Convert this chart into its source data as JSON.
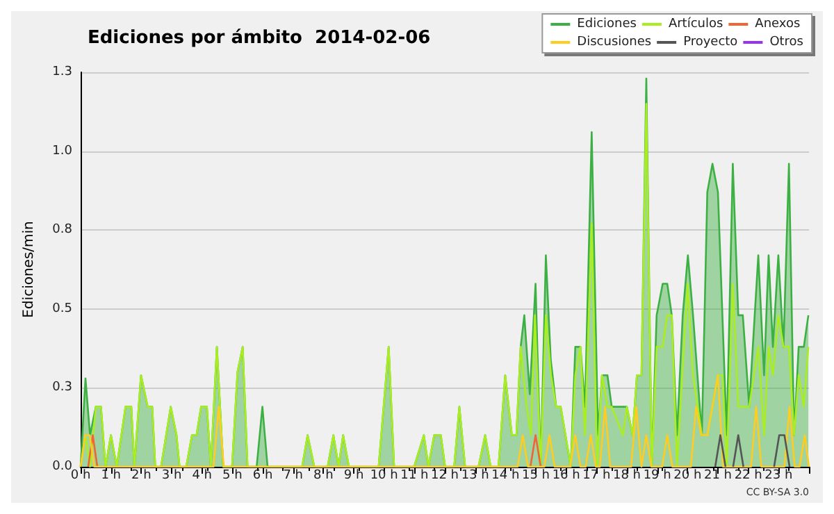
{
  "chart_data": {
    "type": "line",
    "title": "Ediciones por ámbito  2014-02-06",
    "ylabel": "Ediciones/min",
    "annotations": [
      "CC BY-SA 3.0"
    ],
    "xlim": [
      0,
      24
    ],
    "xticks": [
      {
        "value": 0,
        "label": "0 h"
      },
      {
        "value": 1,
        "label": "1 h"
      },
      {
        "value": 2,
        "label": "2 h"
      },
      {
        "value": 3,
        "label": "3 h"
      },
      {
        "value": 4,
        "label": "4 h"
      },
      {
        "value": 5,
        "label": "5 h"
      },
      {
        "value": 6,
        "label": "6 h"
      },
      {
        "value": 7,
        "label": "7 h"
      },
      {
        "value": 8,
        "label": "8 h"
      },
      {
        "value": 9,
        "label": "9 h"
      },
      {
        "value": 10,
        "label": "10 h"
      },
      {
        "value": 11,
        "label": "11 h"
      },
      {
        "value": 12,
        "label": "12 h"
      },
      {
        "value": 13,
        "label": "13 h"
      },
      {
        "value": 14,
        "label": "14 h"
      },
      {
        "value": 15,
        "label": "15 h"
      },
      {
        "value": 16,
        "label": "16 h"
      },
      {
        "value": 17,
        "label": "17 h"
      },
      {
        "value": 18,
        "label": "18 h"
      },
      {
        "value": 19,
        "label": "19 h"
      },
      {
        "value": 20,
        "label": "20 h"
      },
      {
        "value": 21,
        "label": "21 h"
      },
      {
        "value": 22,
        "label": "22 h"
      },
      {
        "value": 23,
        "label": "23 h"
      },
      {
        "value": 24,
        "label": null
      }
    ],
    "ylim": [
      0,
      1.25
    ],
    "yticks": [
      {
        "value": 0,
        "label": "0.0"
      },
      {
        "value": 0.25,
        "label": "0.3"
      },
      {
        "value": 0.5,
        "label": "0.5"
      },
      {
        "value": 0.75,
        "label": "0.8"
      },
      {
        "value": 1.0,
        "label": "1.0"
      },
      {
        "value": 1.25,
        "label": "1.3"
      }
    ],
    "grid": "y",
    "legend": "top right",
    "marker": "none",
    "line_style": "solid",
    "series": [
      {
        "name": "Ediciones",
        "type": "area",
        "color": "#3cb043",
        "x": [
          0,
          0.16,
          0.31,
          0.5,
          0.67,
          0.82,
          1.0,
          1.19,
          1.48,
          1.67,
          1.77,
          1.99,
          2.21,
          2.36,
          2.46,
          2.65,
          2.97,
          3.16,
          3.26,
          3.48,
          3.67,
          3.82,
          3.97,
          4.16,
          4.29,
          4.49,
          4.7,
          4.99,
          5.17,
          5.34,
          5.5,
          5.8,
          5.99,
          6.16,
          7.3,
          7.48,
          7.7,
          8.14,
          8.33,
          8.5,
          8.65,
          8.84,
          9.82,
          10.15,
          10.33,
          10.99,
          11.31,
          11.46,
          11.65,
          11.87,
          12.01,
          12.31,
          12.48,
          12.67,
          13.11,
          13.33,
          13.51,
          13.77,
          13.99,
          14.21,
          14.36,
          14.5,
          14.62,
          14.8,
          14.99,
          15.16,
          15.33,
          15.49,
          15.67,
          15.82,
          16.15,
          16.3,
          16.47,
          16.62,
          16.84,
          17.05,
          17.18,
          17.36,
          17.5,
          17.87,
          18.0,
          18.19,
          18.33,
          18.48,
          18.64,
          18.82,
          18.98,
          19.18,
          19.33,
          19.48,
          19.65,
          19.84,
          20.01,
          20.18,
          20.47,
          20.65,
          20.82,
          21.0,
          21.29,
          21.49,
          21.67,
          21.82,
          22.03,
          22.33,
          22.52,
          22.67,
          22.81,
          22.99,
          23.16,
          23.34,
          23.51,
          23.66,
          23.83,
          23.98
        ],
        "values": [
          0,
          0.28,
          0.1,
          0.19,
          0.19,
          0,
          0.1,
          0,
          0.19,
          0.19,
          0,
          0.29,
          0.19,
          0.19,
          0,
          0,
          0.19,
          0.1,
          0,
          0,
          0.1,
          0.1,
          0.19,
          0.19,
          0,
          0.38,
          0,
          0,
          0.3,
          0.38,
          0,
          0,
          0.19,
          0,
          0,
          0.1,
          0,
          0,
          0.1,
          0,
          0.1,
          0,
          0,
          0.38,
          0,
          0,
          0.1,
          0,
          0.1,
          0.1,
          0,
          0,
          0.19,
          0,
          0,
          0.1,
          0,
          0,
          0.29,
          0.1,
          0.1,
          0.38,
          0.48,
          0.23,
          0.58,
          0,
          0.67,
          0.34,
          0.19,
          0.19,
          0,
          0.38,
          0.38,
          0.19,
          1.06,
          0.1,
          0.29,
          0.29,
          0.19,
          0.19,
          0.19,
          0.1,
          0.29,
          0.29,
          1.23,
          0,
          0.48,
          0.58,
          0.58,
          0.48,
          0.1,
          0.48,
          0.67,
          0.48,
          0.1,
          0.87,
          0.96,
          0.87,
          0.1,
          0.96,
          0.48,
          0.48,
          0.19,
          0.67,
          0.29,
          0.67,
          0.38,
          0.67,
          0.38,
          0.96,
          0.1,
          0.38,
          0.38,
          0.48
        ]
      },
      {
        "name": "Artículos",
        "color": "#aaee22",
        "x": [
          0,
          0.16,
          0.31,
          0.5,
          0.67,
          0.82,
          1.0,
          1.19,
          1.48,
          1.67,
          1.77,
          1.99,
          2.21,
          2.36,
          2.46,
          2.65,
          2.97,
          3.16,
          3.26,
          3.48,
          3.67,
          3.82,
          3.97,
          4.16,
          4.29,
          4.49,
          4.7,
          4.99,
          5.17,
          5.34,
          5.5,
          5.8,
          5.99,
          6.16,
          7.3,
          7.48,
          7.7,
          8.14,
          8.33,
          8.5,
          8.65,
          8.84,
          9.82,
          10.15,
          10.33,
          10.99,
          11.31,
          11.46,
          11.65,
          11.87,
          12.01,
          12.31,
          12.48,
          12.67,
          13.11,
          13.33,
          13.51,
          13.77,
          13.99,
          14.21,
          14.36,
          14.5,
          14.7,
          14.84,
          14.97,
          15.16,
          15.33,
          15.5,
          15.67,
          15.82,
          16.15,
          16.3,
          16.47,
          16.62,
          16.84,
          17.02,
          17.18,
          17.36,
          17.5,
          17.87,
          18.0,
          18.19,
          18.33,
          18.48,
          18.64,
          18.82,
          18.98,
          19.18,
          19.33,
          19.48,
          19.65,
          20.0,
          20.18,
          20.47,
          20.65,
          20.82,
          21.0,
          21.15,
          21.29,
          21.49,
          21.67,
          22.03,
          22.33,
          22.52,
          22.67,
          22.81,
          22.99,
          23.16,
          23.34,
          23.51,
          23.66,
          23.83,
          23.98
        ],
        "values": [
          0,
          0.1,
          0,
          0.19,
          0.19,
          0,
          0.1,
          0,
          0.19,
          0.19,
          0,
          0.29,
          0.19,
          0.19,
          0,
          0,
          0.19,
          0.1,
          0,
          0,
          0.1,
          0.1,
          0.19,
          0.19,
          0,
          0.38,
          0,
          0,
          0.3,
          0.38,
          0,
          0,
          0,
          0,
          0,
          0.1,
          0,
          0,
          0.1,
          0,
          0.1,
          0,
          0,
          0.38,
          0,
          0,
          0.1,
          0,
          0.1,
          0.1,
          0,
          0,
          0.19,
          0,
          0,
          0.1,
          0,
          0,
          0.29,
          0.1,
          0.1,
          0.38,
          0.19,
          0.1,
          0.48,
          0,
          0.48,
          0.29,
          0.19,
          0.19,
          0,
          0.29,
          0.38,
          0.1,
          0.77,
          0,
          0.29,
          0.19,
          0.19,
          0.1,
          0.19,
          0.1,
          0.29,
          0.29,
          1.15,
          0,
          0.38,
          0.38,
          0.48,
          0.48,
          0,
          0.58,
          0.29,
          0.1,
          0.1,
          0.19,
          0.29,
          0.29,
          0,
          0.58,
          0.19,
          0.19,
          0.38,
          0.1,
          0.38,
          0.29,
          0.48,
          0.38,
          0.38,
          0.1,
          0.29,
          0.19,
          0.38
        ]
      },
      {
        "name": "Anexos",
        "color": "#ee6633",
        "x": [
          0.25,
          0.4,
          0.55,
          7,
          14.82,
          14.99,
          15.16
        ],
        "values": [
          0,
          0.1,
          0,
          null,
          0,
          0.1,
          0
        ]
      },
      {
        "name": "Discusiones",
        "color": "#ffcc22",
        "x": [
          0,
          0.15,
          0.3,
          0.45,
          4.38,
          4.55,
          4.72,
          14.4,
          14.57,
          14.74,
          15.28,
          15.45,
          15.62,
          16.13,
          16.3,
          16.47,
          16.64,
          16.81,
          16.98,
          17.11,
          17.28,
          17.45,
          18.14,
          18.31,
          18.48,
          18.64,
          18.81,
          19.16,
          19.33,
          19.5,
          20.11,
          20.28,
          20.45,
          20.65,
          21.0,
          21.17,
          22.09,
          22.26,
          22.43,
          23.19,
          23.36,
          23.53,
          23.69,
          23.86,
          24
        ],
        "values": [
          0,
          0.1,
          0.1,
          0,
          0,
          0.19,
          0,
          0,
          0.1,
          0,
          0,
          0.1,
          0,
          0,
          0.1,
          0,
          0,
          0.1,
          0,
          0,
          0.19,
          0,
          0,
          0.19,
          0,
          0.1,
          0,
          0,
          0.1,
          0,
          0,
          0.19,
          0.1,
          0.1,
          0.29,
          0,
          0,
          0.19,
          0,
          0,
          0.19,
          0,
          0,
          0.1,
          0
        ]
      },
      {
        "name": "Proyecto",
        "color": "#555555",
        "x": [
          20.91,
          21.08,
          21.25,
          21.4,
          21.5,
          21.67,
          21.84,
          22.3,
          22.85,
          23.02,
          23.19,
          23.36
        ],
        "values": [
          0,
          0.1,
          0,
          null,
          0,
          0.1,
          0,
          null,
          0,
          0.1,
          0.1,
          0
        ]
      },
      {
        "name": "Otros",
        "color": "#9933ee"
      }
    ]
  }
}
